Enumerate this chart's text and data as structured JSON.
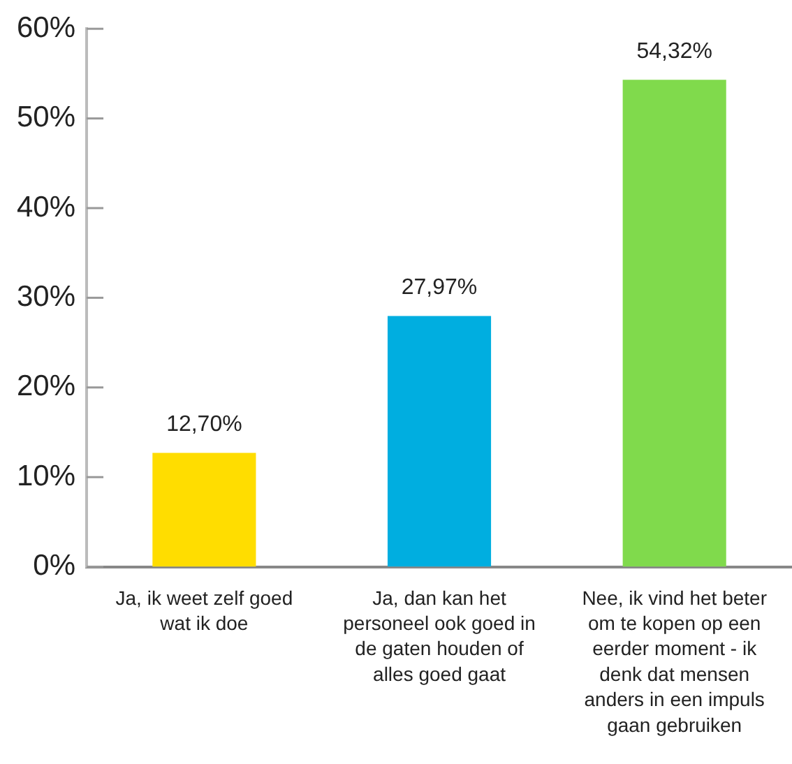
{
  "chart_data": {
    "type": "bar",
    "categories": [
      "Ja, ik weet zelf goed wat ik doe",
      "Ja, dan kan het personeel ook goed in de gaten houden of alles goed gaat",
      "Nee, ik vind het beter om te kopen op een eerder moment - ik denk dat mensen anders in een impuls gaan gebruiken"
    ],
    "values": [
      12.7,
      27.97,
      54.32
    ],
    "colors": [
      "#ffdd00",
      "#00aee0",
      "#80da4c"
    ],
    "value_labels": [
      "12,70%",
      "27,97%",
      "54,32%"
    ],
    "ylim": [
      0,
      60
    ],
    "yticks": [
      {
        "value": 0,
        "label": "0%"
      },
      {
        "value": 10,
        "label": "10%"
      },
      {
        "value": 20,
        "label": "20%"
      },
      {
        "value": 30,
        "label": "30%"
      },
      {
        "value": 40,
        "label": "40%"
      },
      {
        "value": 50,
        "label": "50%"
      },
      {
        "value": 60,
        "label": "60%"
      }
    ],
    "grid": false,
    "legend": false
  }
}
